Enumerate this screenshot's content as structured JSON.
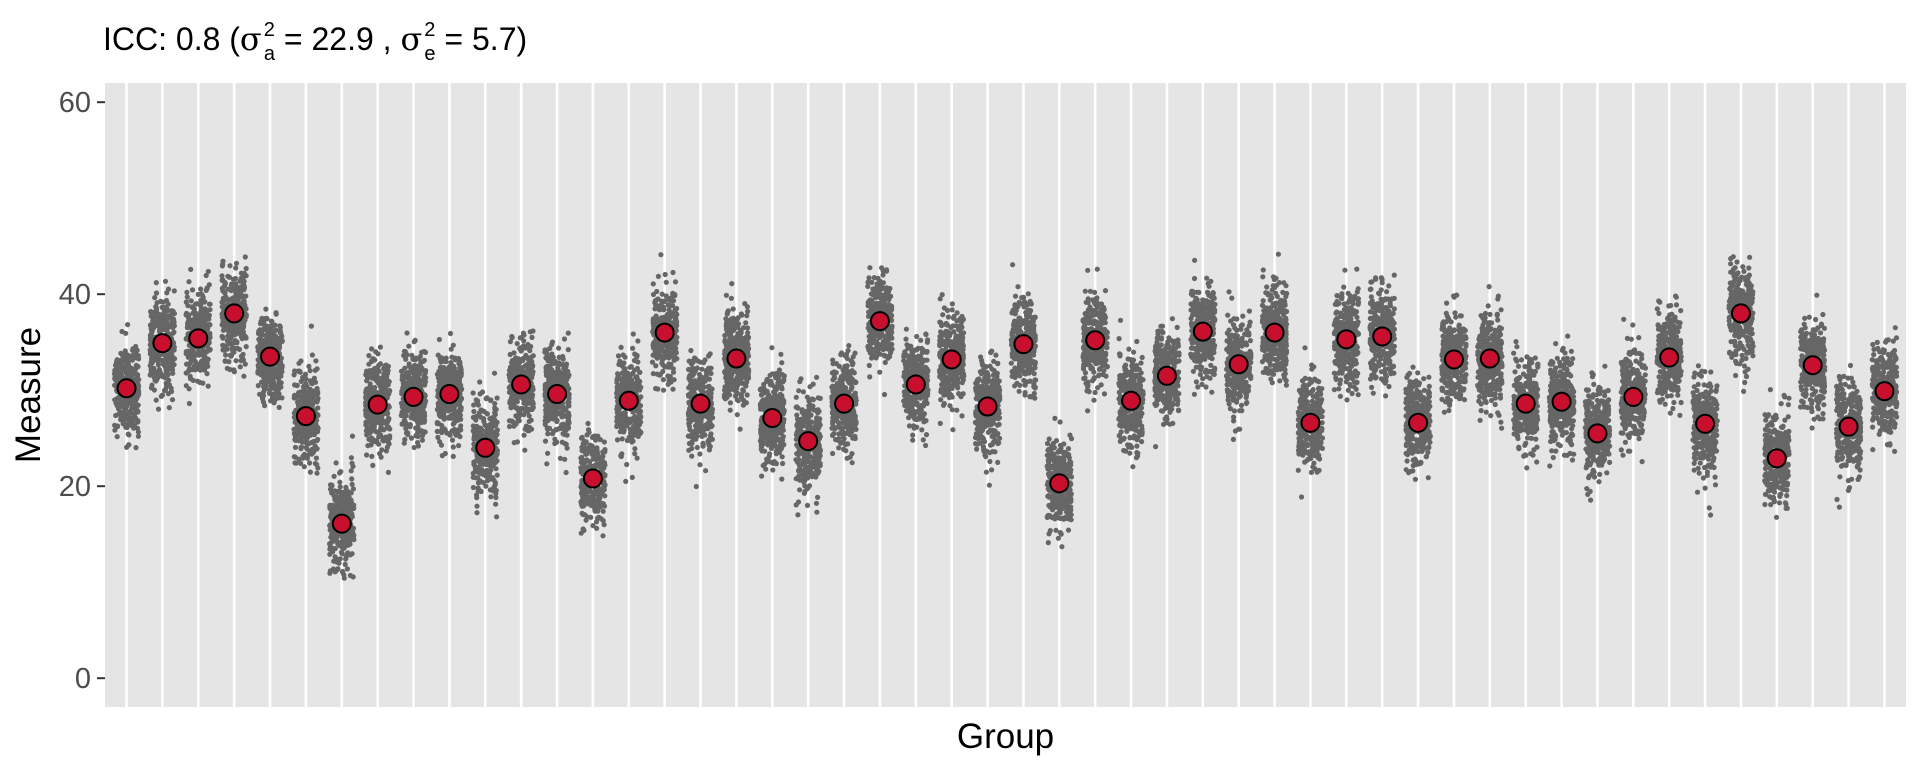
{
  "title": {
    "prefix": "ICC: 0.8 (",
    "sigma_a_symbol": "σ",
    "sigma_a_sub": "a",
    "sigma_a_sup": "2",
    "sigma_a_value": " = 22.9 , ",
    "sigma_e_symbol": "σ",
    "sigma_e_sub": "e",
    "sigma_e_sup": "2",
    "sigma_e_value": " = 5.7)"
  },
  "chart_data": {
    "type": "scatter",
    "xlabel": "Group",
    "ylabel": "Measure",
    "ylim": [
      -3,
      62
    ],
    "yticks": [
      0,
      20,
      40,
      60
    ],
    "ytick_labels": [
      "0",
      "20",
      "40",
      "60"
    ],
    "grid": true,
    "n_groups": 50,
    "points_per_group_approx": 300,
    "sigma_within": 2.39,
    "group_means": [
      30.2,
      34.9,
      35.4,
      38.0,
      33.5,
      27.3,
      16.1,
      28.5,
      29.3,
      29.6,
      24.0,
      30.6,
      29.6,
      20.8,
      28.9,
      36.0,
      28.6,
      33.3,
      27.1,
      24.7,
      28.6,
      37.2,
      30.6,
      33.2,
      28.3,
      34.8,
      20.3,
      35.2,
      28.9,
      31.5,
      36.1,
      32.7,
      36.0,
      26.6,
      35.3,
      35.6,
      26.6,
      33.2,
      33.3,
      28.6,
      28.8,
      25.5,
      29.3,
      33.4,
      26.5,
      38.0,
      22.9,
      32.6,
      26.2,
      29.9
    ],
    "colors": {
      "panel_background": "#e5e5e5",
      "grid_line": "#ffffff",
      "raw_points": "#666666",
      "mean_fill": "#c8102e",
      "mean_stroke": "#000000"
    }
  }
}
